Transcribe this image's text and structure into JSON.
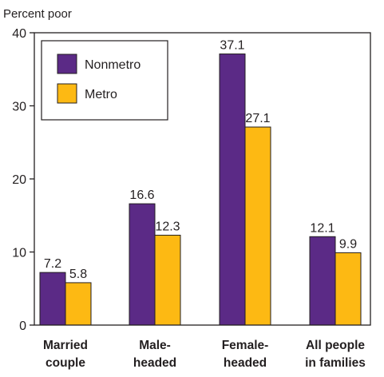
{
  "chart_data": {
    "type": "bar",
    "ylabel": "Percent poor",
    "ylim": [
      0,
      40
    ],
    "yticks": [
      0,
      10,
      20,
      30,
      40
    ],
    "categories": [
      [
        "Married",
        "couple"
      ],
      [
        "Male-",
        "headed"
      ],
      [
        "Female-",
        "headed"
      ],
      [
        "All people",
        "in families"
      ]
    ],
    "series": [
      {
        "name": "Nonmetro",
        "color": "#5b2a86",
        "values": [
          7.2,
          16.6,
          37.1,
          12.1
        ]
      },
      {
        "name": "Metro",
        "color": "#fdb913",
        "values": [
          5.8,
          12.3,
          27.1,
          9.9
        ]
      }
    ],
    "data_labels": [
      [
        "7.2",
        "16.6",
        "37.1",
        "12.1"
      ],
      [
        "5.8",
        "12.3",
        "27.1",
        "9.9"
      ]
    ],
    "legend_position": "top-left",
    "grid": false
  }
}
